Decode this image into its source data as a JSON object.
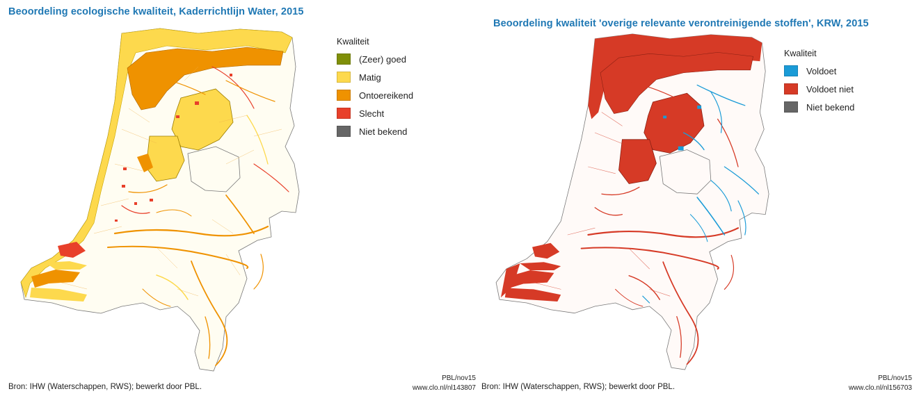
{
  "left": {
    "title": "Beoordeling ecologische kwaliteit, Kaderrichtlijn Water, 2015",
    "legend": {
      "title": "Kwaliteit",
      "items": [
        {
          "label": "(Zeer) goed",
          "color": "#7f8f08"
        },
        {
          "label": "Matig",
          "color": "#fdd94d"
        },
        {
          "label": "Ontoereikend",
          "color": "#ef9200"
        },
        {
          "label": "Slecht",
          "color": "#e8402a"
        },
        {
          "label": "Niet bekend",
          "color": "#666666"
        }
      ]
    },
    "source": "Bron: IHW (Waterschappen, RWS); bewerkt door PBL.",
    "credit": {
      "line1": "PBL/nov15",
      "line2": "www.clo.nl/nl143807"
    }
  },
  "right": {
    "title": "Beoordeling kwaliteit 'overige relevante verontreinigende stoffen', KRW, 2015",
    "legend": {
      "title": "Kwaliteit",
      "items": [
        {
          "label": "Voldoet",
          "color": "#1a9bd7"
        },
        {
          "label": "Voldoet niet",
          "color": "#d63a26"
        },
        {
          "label": "Niet bekend",
          "color": "#666666"
        }
      ]
    },
    "source": "Bron: IHW (Waterschappen, RWS); bewerkt door PBL.",
    "credit": {
      "line1": "PBL/nov15",
      "line2": "www.clo.nl/nl156703"
    }
  }
}
